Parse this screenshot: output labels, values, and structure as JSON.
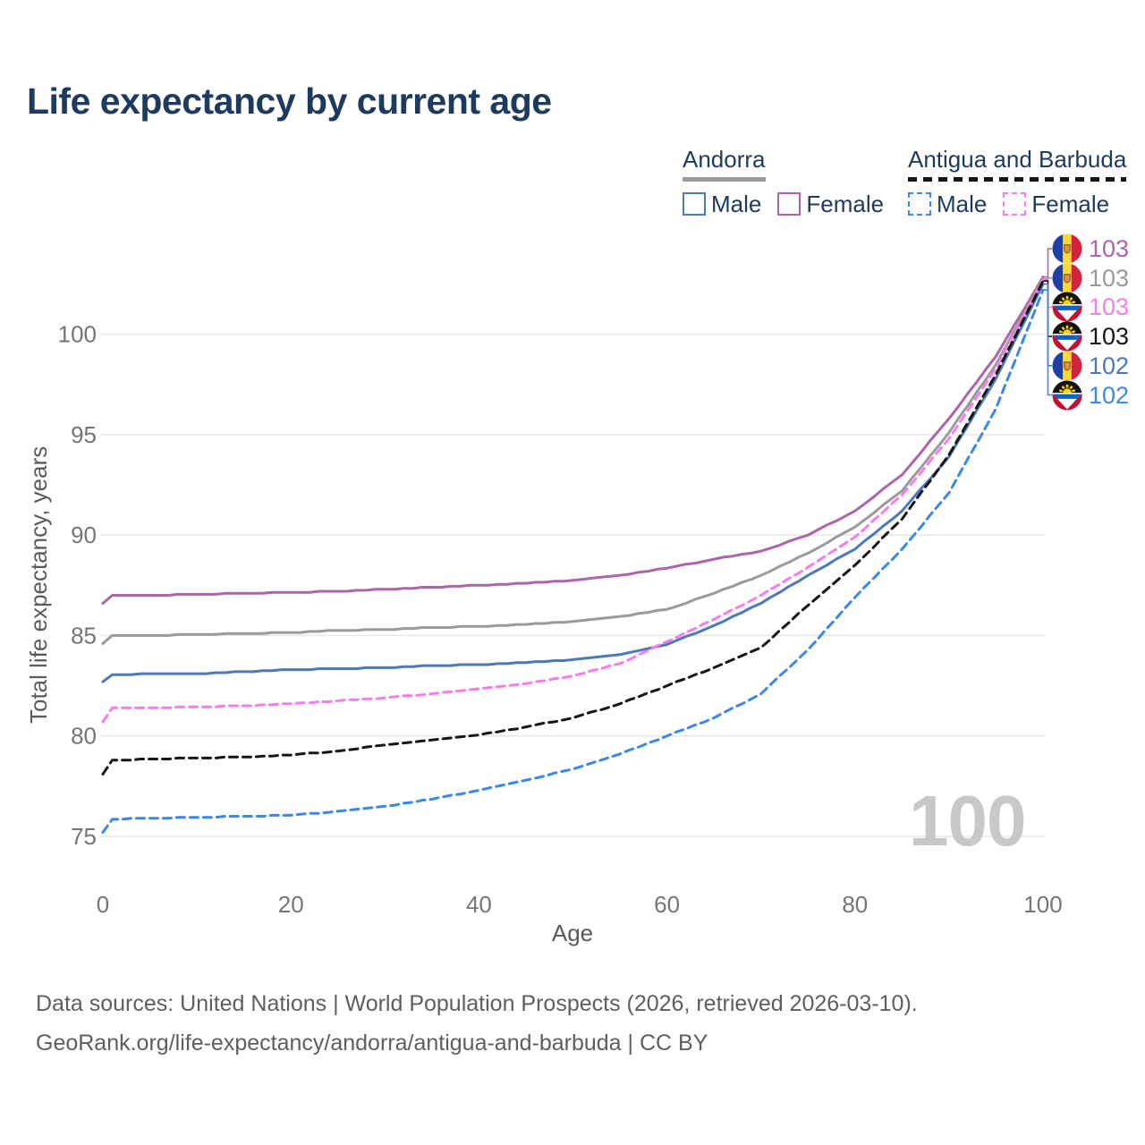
{
  "header": {
    "title": "Life expectancy by current age"
  },
  "legend": {
    "groups": [
      {
        "name": "Andorra",
        "line_style": "solid",
        "line_color": "#9a9a9a",
        "items": [
          {
            "label": "Male",
            "color": "#4d79ba",
            "dashed": false
          },
          {
            "label": "Female",
            "color": "#ad64ab",
            "dashed": false
          }
        ]
      },
      {
        "name": "Antigua and Barbuda",
        "line_style": "dashed",
        "line_color": "#161616",
        "items": [
          {
            "label": "Male",
            "color": "#3b87f0",
            "dashed": true
          },
          {
            "label": "Female",
            "color": "#fb7ce8",
            "dashed": true
          }
        ]
      }
    ]
  },
  "chart_data": {
    "type": "line",
    "title": "Life expectancy by current age",
    "xlabel": "Age",
    "ylabel": "Total life expectancy, years",
    "xlim": [
      0,
      100
    ],
    "ylim": [
      73,
      104
    ],
    "x_ticks": [
      0,
      20,
      40,
      60,
      80,
      100
    ],
    "y_ticks": [
      75,
      80,
      85,
      90,
      95,
      100
    ],
    "grid": "horizontal-only",
    "legend_position": "top-right",
    "x": [
      0,
      1,
      5,
      10,
      15,
      20,
      25,
      30,
      35,
      40,
      45,
      50,
      55,
      60,
      65,
      70,
      75,
      80,
      85,
      90,
      95,
      100
    ],
    "series": [
      {
        "id": "andorra-female",
        "country": "Andorra",
        "sex": "Female",
        "color": "#ad64ab",
        "dashed": false,
        "end_label": "103",
        "values": [
          86.6,
          87.0,
          87.0,
          87.05,
          87.1,
          87.15,
          87.2,
          87.3,
          87.4,
          87.5,
          87.6,
          87.75,
          88.0,
          88.35,
          88.8,
          89.2,
          90.0,
          91.2,
          93.0,
          95.8,
          98.9,
          102.85
        ]
      },
      {
        "id": "andorra-all",
        "country": "Andorra",
        "sex": "Both",
        "color": "#9a9a9a",
        "dashed": false,
        "end_label": "103",
        "values": [
          84.6,
          85.0,
          85.0,
          85.05,
          85.1,
          85.15,
          85.25,
          85.3,
          85.4,
          85.45,
          85.55,
          85.7,
          85.95,
          86.3,
          87.1,
          88.0,
          89.1,
          90.4,
          92.2,
          95.1,
          98.5,
          102.75
        ]
      },
      {
        "id": "andorra-male",
        "country": "Andorra",
        "sex": "Male",
        "color": "#4d79ba",
        "dashed": false,
        "end_label": "102",
        "values": [
          82.7,
          83.05,
          83.1,
          83.1,
          83.2,
          83.3,
          83.35,
          83.4,
          83.5,
          83.55,
          83.65,
          83.8,
          84.05,
          84.55,
          85.5,
          86.6,
          88.0,
          89.3,
          91.2,
          93.9,
          97.8,
          102.5
        ]
      },
      {
        "id": "antigua-and-barbuda-female",
        "country": "Antigua and Barbuda",
        "sex": "Female",
        "color": "#fb7ce8",
        "dashed": true,
        "end_label": "103",
        "values": [
          80.7,
          81.4,
          81.4,
          81.45,
          81.5,
          81.6,
          81.75,
          81.9,
          82.1,
          82.35,
          82.6,
          83.0,
          83.6,
          84.7,
          85.8,
          87.0,
          88.4,
          89.9,
          92.0,
          94.8,
          98.3,
          102.7
        ]
      },
      {
        "id": "antigua-and-barbuda-all",
        "country": "Antigua and Barbuda",
        "sex": "Both",
        "color": "#161616",
        "dashed": true,
        "end_label": "103",
        "values": [
          78.1,
          78.8,
          78.85,
          78.9,
          78.95,
          79.05,
          79.25,
          79.55,
          79.8,
          80.05,
          80.45,
          80.9,
          81.6,
          82.5,
          83.4,
          84.4,
          86.5,
          88.5,
          90.8,
          94.0,
          98.0,
          102.65
        ]
      },
      {
        "id": "antigua-and-barbuda-male",
        "country": "Antigua and Barbuda",
        "sex": "Male",
        "color": "#3b87f0",
        "dashed": true,
        "end_label": "102",
        "values": [
          75.2,
          75.85,
          75.9,
          75.95,
          76.0,
          76.05,
          76.25,
          76.5,
          76.85,
          77.3,
          77.8,
          78.35,
          79.1,
          80.0,
          80.9,
          82.1,
          84.3,
          86.9,
          89.3,
          92.1,
          96.3,
          102.2
        ]
      }
    ]
  },
  "end_labels": [
    {
      "series": 0,
      "flag": "andorra",
      "value": "103",
      "color": "#ad64ab"
    },
    {
      "series": 1,
      "flag": "andorra",
      "value": "103",
      "color": "#9a9a9a"
    },
    {
      "series": 3,
      "flag": "antigua-and-barbuda",
      "value": "103",
      "color": "#fb7ce8"
    },
    {
      "series": 4,
      "flag": "antigua-and-barbuda",
      "value": "103",
      "color": "#161616"
    },
    {
      "series": 2,
      "flag": "andorra",
      "value": "102",
      "color": "#4d79ba"
    },
    {
      "series": 5,
      "flag": "antigua-and-barbuda",
      "value": "102",
      "color": "#3b87f0"
    }
  ],
  "watermark": {
    "text": "100"
  },
  "footer": {
    "line1": "Data sources: United Nations | World Population Prospects (2026, retrieved 2026-03-10).",
    "line2": "GeoRank.org/life-expectancy/andorra/antigua-and-barbuda | CC BY"
  }
}
